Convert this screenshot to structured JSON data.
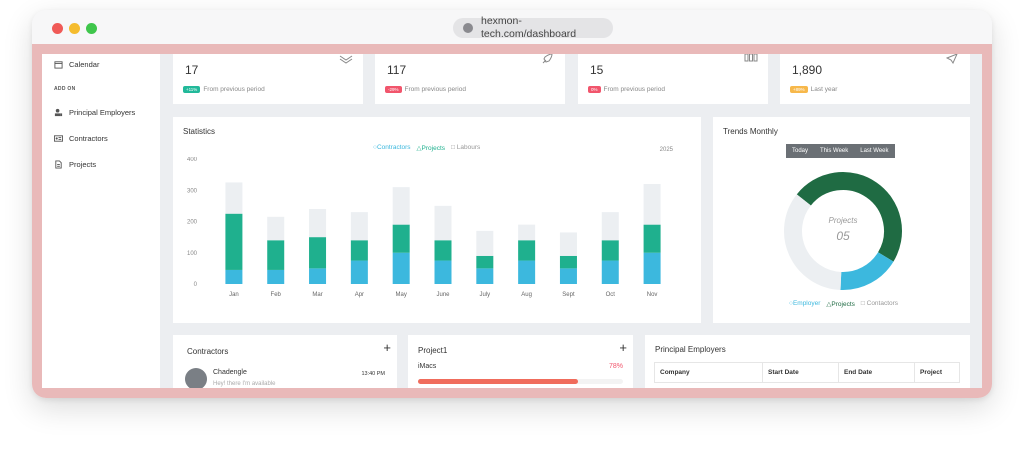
{
  "browser": {
    "url": "hexmon-tech.com/dashboard"
  },
  "sidebar": {
    "calendar_label": "Calendar",
    "section_label": "ADD ON",
    "items": [
      {
        "label": "Principal Employers",
        "icon": "user-tie-icon"
      },
      {
        "label": "Contractors",
        "icon": "id-card-icon"
      },
      {
        "label": "Projects",
        "icon": "document-icon"
      }
    ]
  },
  "stats": [
    {
      "value": "17",
      "badge": "+11%",
      "badge_color": "#22b99a",
      "note": "From previous period",
      "icon": "layers-icon"
    },
    {
      "value": "117",
      "badge": "-29%",
      "badge_color": "#f1556c",
      "note": "From previous period",
      "icon": "rocket-icon"
    },
    {
      "value": "15",
      "badge": "0%",
      "badge_color": "#f1556c",
      "note": "From previous period",
      "icon": "bar-icon"
    },
    {
      "value": "1,890",
      "badge": "+89%",
      "badge_color": "#f7b84b",
      "note": "Last year",
      "icon": "send-icon"
    }
  ],
  "statistics": {
    "title": "Statistics",
    "year": "2025",
    "legend": [
      "Contractors",
      "Projects",
      "Labours"
    ]
  },
  "chart_data": {
    "type": "bar",
    "stacked": true,
    "categories": [
      "Jan",
      "Feb",
      "Mar",
      "Apr",
      "May",
      "June",
      "July",
      "Aug",
      "Sept",
      "Oct",
      "Nov"
    ],
    "series": [
      {
        "name": "Contractors",
        "color": "#3cb8de",
        "values": [
          45,
          45,
          50,
          75,
          100,
          75,
          50,
          75,
          50,
          75,
          100
        ]
      },
      {
        "name": "Projects",
        "color": "#1fb08e",
        "values": [
          180,
          95,
          100,
          65,
          90,
          65,
          40,
          65,
          40,
          65,
          90
        ]
      },
      {
        "name": "Labours",
        "color": "#eceff2",
        "values": [
          100,
          75,
          90,
          90,
          120,
          110,
          80,
          50,
          75,
          90,
          130
        ]
      }
    ],
    "yticks": [
      "0",
      "100",
      "200",
      "300",
      "400"
    ],
    "ylim": [
      0,
      400
    ]
  },
  "trends": {
    "title": "Trends Monthly",
    "buttons": [
      "Today",
      "This Week",
      "Last Week"
    ],
    "center_label": "Projects",
    "center_value": "05",
    "legend": [
      "Employer",
      "Projects",
      "Contactors"
    ],
    "donut": [
      {
        "name": "Projects",
        "value": 48,
        "color": "#1f6b43"
      },
      {
        "name": "Employer",
        "value": 17,
        "color": "#3cb8de"
      },
      {
        "name": "Contactors",
        "value": 35,
        "color": "#eceff2"
      }
    ]
  },
  "contractors": {
    "title": "Contractors",
    "name": "Chadengle",
    "time": "13:40 PM",
    "message": "Hey! there I'm available"
  },
  "project": {
    "title": "Project1",
    "item": "iMacs",
    "percent": "78%",
    "progress": 0.78
  },
  "employers": {
    "title": "Principal Employers",
    "columns": [
      "Company",
      "Start Date",
      "End Date",
      "Project"
    ]
  }
}
